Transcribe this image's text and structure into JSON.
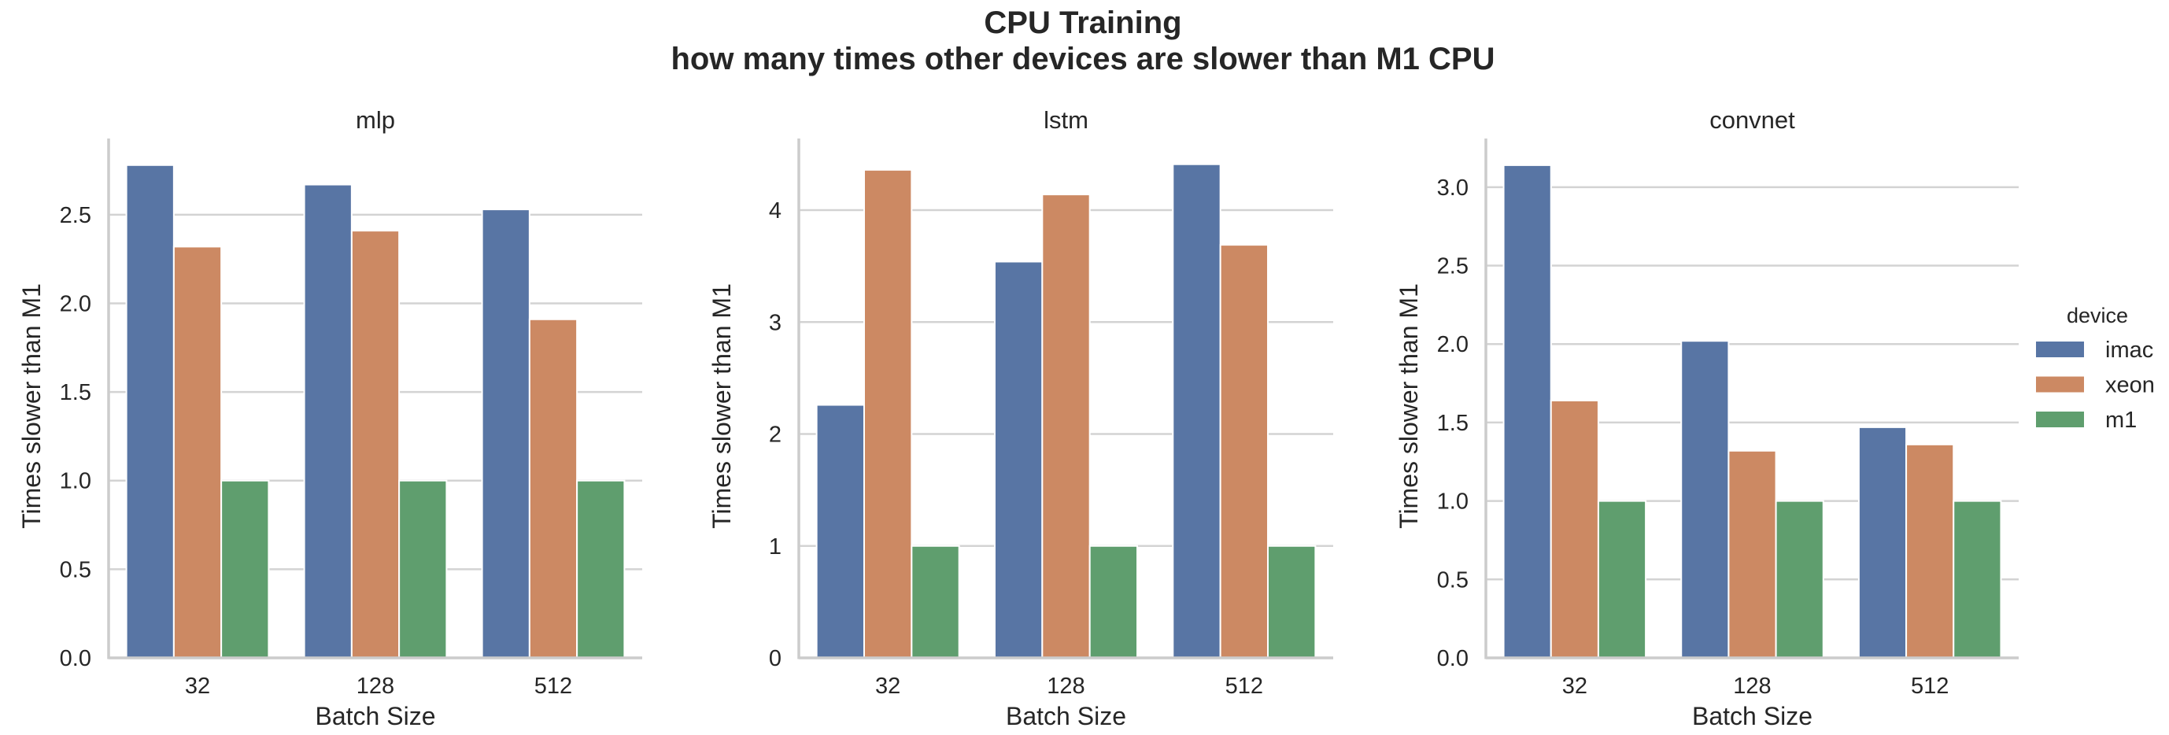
{
  "chart_data": {
    "type": "bar",
    "title": "CPU Training",
    "subtitle": "how many times other devices are slower than M1 CPU",
    "legend": {
      "title": "device",
      "placement": "right",
      "entries": [
        {
          "name": "imac",
          "color": "#5875a4"
        },
        {
          "name": "xeon",
          "color": "#cc8963"
        },
        {
          "name": "m1",
          "color": "#5f9e6e"
        }
      ]
    },
    "panels": [
      {
        "title": "mlp",
        "xlabel": "Batch Size",
        "ylabel": "Times slower than M1",
        "categories": [
          "32",
          "128",
          "512"
        ],
        "ylim": [
          0,
          2.93
        ],
        "yticks": [
          0.0,
          0.5,
          1.0,
          1.5,
          2.0,
          2.5
        ],
        "ytick_labels": [
          "0.0",
          "0.5",
          "1.0",
          "1.5",
          "2.0",
          "2.5"
        ],
        "grid": true,
        "series": [
          {
            "name": "imac",
            "values": [
              2.78,
              2.67,
              2.53
            ]
          },
          {
            "name": "xeon",
            "values": [
              2.32,
              2.41,
              1.91
            ]
          },
          {
            "name": "m1",
            "values": [
              1.0,
              1.0,
              1.0
            ]
          }
        ]
      },
      {
        "title": "lstm",
        "xlabel": "Batch Size",
        "ylabel": "Times slower than M1",
        "categories": [
          "32",
          "128",
          "512"
        ],
        "ylim": [
          0,
          4.64
        ],
        "yticks": [
          0,
          1,
          2,
          3,
          4
        ],
        "ytick_labels": [
          "0",
          "1",
          "2",
          "3",
          "4"
        ],
        "grid": true,
        "series": [
          {
            "name": "imac",
            "values": [
              2.26,
              3.54,
              4.41
            ]
          },
          {
            "name": "xeon",
            "values": [
              4.36,
              4.14,
              3.69
            ]
          },
          {
            "name": "m1",
            "values": [
              1.0,
              1.0,
              1.0
            ]
          }
        ]
      },
      {
        "title": "convnet",
        "xlabel": "Batch Size",
        "ylabel": "Times slower than M1",
        "categories": [
          "32",
          "128",
          "512"
        ],
        "ylim": [
          0,
          3.31
        ],
        "yticks": [
          0.0,
          0.5,
          1.0,
          1.5,
          2.0,
          2.5,
          3.0
        ],
        "ytick_labels": [
          "0.0",
          "0.5",
          "1.0",
          "1.5",
          "2.0",
          "2.5",
          "3.0"
        ],
        "grid": true,
        "series": [
          {
            "name": "imac",
            "values": [
              3.14,
              2.02,
              1.47
            ]
          },
          {
            "name": "xeon",
            "values": [
              1.64,
              1.32,
              1.36
            ]
          },
          {
            "name": "m1",
            "values": [
              1.0,
              1.0,
              1.0
            ]
          }
        ]
      }
    ]
  }
}
